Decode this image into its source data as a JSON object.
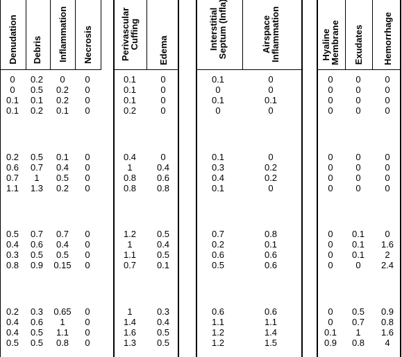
{
  "table": {
    "columns": [
      {
        "key": "denudation",
        "label": "Denudation"
      },
      {
        "key": "debris",
        "label": "Debris"
      },
      {
        "key": "inflammation",
        "label": "Inflammation"
      },
      {
        "key": "necrosis",
        "label": "Necrosis"
      },
      {
        "key": "perivascular_cuffing",
        "label": "Perivascular\nCuffing"
      },
      {
        "key": "edema",
        "label": "Edema"
      },
      {
        "key": "interstitial_septum",
        "label": "Interstitial\nSeptum (Infla)"
      },
      {
        "key": "airspace_inflammation",
        "label": "Airspace\nInflammation"
      },
      {
        "key": "hyaline_membrane",
        "label": "Hyaline\nMembrane"
      },
      {
        "key": "exudates",
        "label": "Exudates"
      },
      {
        "key": "hemorrhage",
        "label": "Hemorrhage"
      }
    ],
    "groups": [
      {
        "rows": [
          [
            "0",
            "0.2",
            "0",
            "0",
            "0.1",
            "0",
            "0.1",
            "0",
            "0",
            "0",
            "0"
          ],
          [
            "0",
            "0.5",
            "0.2",
            "0",
            "0.1",
            "0",
            "0",
            "0",
            "0",
            "0",
            "0"
          ],
          [
            "0.1",
            "0.1",
            "0.2",
            "0",
            "0.1",
            "0",
            "0.1",
            "0.1",
            "0",
            "0",
            "0"
          ],
          [
            "0.1",
            "0.2",
            "0.1",
            "0",
            "0.2",
            "0",
            "0",
            "0",
            "0",
            "0",
            "0"
          ]
        ]
      },
      {
        "rows": [
          [
            "0.2",
            "0.5",
            "0.1",
            "0",
            "0.4",
            "0",
            "0.1",
            "0",
            "0",
            "0",
            "0"
          ],
          [
            "0.6",
            "0.7",
            "0.4",
            "0",
            "1",
            "0.4",
            "0.3",
            "0.2",
            "0",
            "0",
            "0"
          ],
          [
            "0.7",
            "1",
            "0.5",
            "0",
            "0.8",
            "0.6",
            "0.4",
            "0.2",
            "0",
            "0",
            "0"
          ],
          [
            "1.1",
            "1.3",
            "0.2",
            "0",
            "0.8",
            "0.8",
            "0.1",
            "0",
            "0",
            "0",
            "0"
          ]
        ]
      },
      {
        "rows": [
          [
            "0.5",
            "0.7",
            "0.7",
            "0",
            "1.2",
            "0.5",
            "0.7",
            "0.8",
            "0",
            "0.1",
            "0"
          ],
          [
            "0.4",
            "0.6",
            "0.4",
            "0",
            "1",
            "0.4",
            "0.2",
            "0.1",
            "0",
            "0.1",
            "1.6"
          ],
          [
            "0.3",
            "0.5",
            "0.5",
            "0",
            "1.1",
            "0.5",
            "0.6",
            "0.6",
            "0",
            "0.1",
            "2"
          ],
          [
            "0.8",
            "0.9",
            "0.15",
            "0",
            "0.7",
            "0.1",
            "0.5",
            "0.6",
            "0",
            "0",
            "2.4"
          ]
        ]
      },
      {
        "rows": [
          [
            "0.2",
            "0.3",
            "0.65",
            "0",
            "1",
            "0.3",
            "0.6",
            "0.6",
            "0",
            "0.5",
            "0.9"
          ],
          [
            "0.4",
            "0.6",
            "1",
            "0",
            "1.4",
            "0.4",
            "1.1",
            "1.1",
            "0",
            "0.7",
            "0.8"
          ],
          [
            "0.4",
            "0.5",
            "1.1",
            "0",
            "1.6",
            "0.5",
            "1.2",
            "1.4",
            "0.1",
            "1",
            "1.6"
          ],
          [
            "0.5",
            "0.5",
            "0.8",
            "0",
            "1.3",
            "0.5",
            "1.2",
            "1.5",
            "0.9",
            "0.8",
            "4"
          ]
        ]
      }
    ]
  }
}
